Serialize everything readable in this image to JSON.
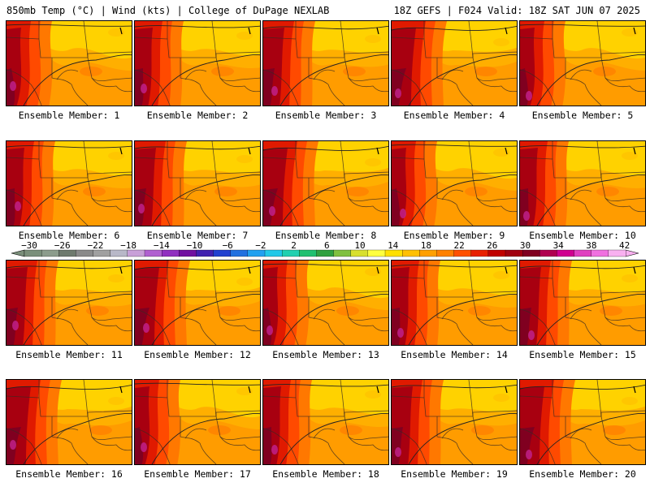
{
  "header": {
    "title_left": "850mb Temp (°C) | Wind (kts) | College of DuPage NEXLAB",
    "title_right": "18Z GEFS | F024 Valid: 18Z SAT JUN 07 2025"
  },
  "panels": [
    {
      "label": "Ensemble Member: 1"
    },
    {
      "label": "Ensemble Member: 2"
    },
    {
      "label": "Ensemble Member: 3"
    },
    {
      "label": "Ensemble Member: 4"
    },
    {
      "label": "Ensemble Member: 5"
    },
    {
      "label": "Ensemble Member: 6"
    },
    {
      "label": "Ensemble Member: 7"
    },
    {
      "label": "Ensemble Member: 8"
    },
    {
      "label": "Ensemble Member: 9"
    },
    {
      "label": "Ensemble Member: 10"
    },
    {
      "label": "Ensemble Member: 11"
    },
    {
      "label": "Ensemble Member: 12"
    },
    {
      "label": "Ensemble Member: 13"
    },
    {
      "label": "Ensemble Member: 14"
    },
    {
      "label": "Ensemble Member: 15"
    },
    {
      "label": "Ensemble Member: 16"
    },
    {
      "label": "Ensemble Member: 17"
    },
    {
      "label": "Ensemble Member: 18"
    },
    {
      "label": "Ensemble Member: 19"
    },
    {
      "label": "Ensemble Member: 20"
    }
  ],
  "colorbar": {
    "labels": [
      "−30",
      "−26",
      "−22",
      "−18",
      "−14",
      "−10",
      "−6",
      "−2",
      "2",
      "6",
      "10",
      "14",
      "18",
      "22",
      "26",
      "30",
      "34",
      "38",
      "42"
    ],
    "colors": [
      "#7a8f7a",
      "#8c9c8c",
      "#6e7a6e",
      "#8a8a8a",
      "#a0a0a0",
      "#b8b8c8",
      "#c8a0d8",
      "#b060d0",
      "#9030c0",
      "#7010a0",
      "#4020b0",
      "#2040d0",
      "#2070e0",
      "#20a0f0",
      "#20c8e8",
      "#20d0b0",
      "#20c070",
      "#30a040",
      "#80c040",
      "#d8e030",
      "#ffff40",
      "#ffe000",
      "#ffc000",
      "#ffa000",
      "#ff8000",
      "#ff5000",
      "#e82000",
      "#c00000",
      "#a00010",
      "#800020",
      "#b00050",
      "#d00090",
      "#e040c0",
      "#f070e0",
      "#f8b0f0"
    ],
    "map_colors": {
      "yellow": "#ffe800",
      "light_orange": "#ffc000",
      "orange": "#ff9c00",
      "dark_orange": "#ff7800",
      "red_orange": "#ff4a00",
      "red": "#e01a00",
      "dark_red": "#a80010",
      "maroon": "#800020",
      "magenta": "#c0208a"
    }
  }
}
